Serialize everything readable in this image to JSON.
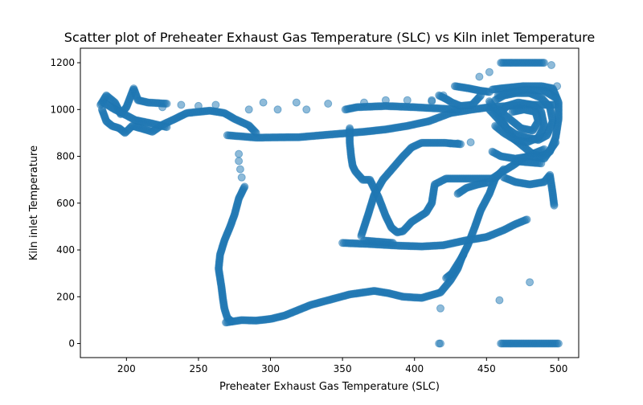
{
  "chart_data": {
    "type": "scatter",
    "title": "Scatter plot of Preheater Exhaust Gas Temperature (SLC) vs Kiln inlet Temperature",
    "xlabel": "Preheater Exhaust Gas Temperature (SLC)",
    "ylabel": "Kiln inlet Temperature",
    "xlim": [
      168,
      514
    ],
    "ylim": [
      -60,
      1262
    ],
    "x_ticks": [
      200,
      250,
      300,
      350,
      400,
      450,
      500
    ],
    "y_ticks": [
      0,
      200,
      400,
      600,
      800,
      1000,
      1200
    ],
    "marker_color": "#1f77b4",
    "marker_alpha": 0.5,
    "grid": false,
    "series": [
      {
        "name": "",
        "paths": [
          [
            [
              182,
              1020
            ],
            [
              186,
              1060
            ],
            [
              192,
              1030
            ],
            [
              196,
              980
            ],
            [
              200,
              1010
            ],
            [
              205,
              1090
            ],
            [
              208,
              1040
            ],
            [
              215,
              1030
            ],
            [
              228,
              1025
            ]
          ],
          [
            [
              183,
              1000
            ],
            [
              186,
              950
            ],
            [
              190,
              930
            ],
            [
              195,
              920
            ],
            [
              199,
              900
            ],
            [
              204,
              930
            ],
            [
              210,
              920
            ],
            [
              218,
              905
            ],
            [
              225,
              935
            ],
            [
              232,
              955
            ],
            [
              242,
              985
            ],
            [
              258,
              995
            ],
            [
              268,
              985
            ],
            [
              275,
              960
            ],
            [
              285,
              932
            ],
            [
              290,
              900
            ]
          ],
          [
            [
              184,
              1030
            ],
            [
              192,
              1000
            ],
            [
              200,
              975
            ],
            [
              206,
              955
            ],
            [
              210,
              950
            ],
            [
              218,
              940
            ],
            [
              228,
              925
            ]
          ],
          [
            [
              270,
              890
            ],
            [
              290,
              880
            ],
            [
              320,
              882
            ],
            [
              345,
              895
            ],
            [
              365,
              905
            ],
            [
              380,
              915
            ],
            [
              395,
              930
            ],
            [
              410,
              950
            ],
            [
              425,
              985
            ],
            [
              440,
              1000
            ],
            [
              452,
              1010
            ],
            [
              465,
              1015
            ],
            [
              480,
              1020
            ],
            [
              498,
              1020
            ]
          ],
          [
            [
              352,
              1000
            ],
            [
              360,
              1010
            ],
            [
              380,
              1015
            ],
            [
              400,
              1010
            ],
            [
              415,
              1005
            ],
            [
              430,
              1000
            ]
          ],
          [
            [
              282,
              670
            ],
            [
              278,
              620
            ],
            [
              275,
              550
            ],
            [
              272,
              500
            ],
            [
              268,
              440
            ],
            [
              265,
              380
            ],
            [
              264,
              320
            ],
            [
              265,
              280
            ],
            [
              266,
              240
            ],
            [
              267,
              190
            ],
            [
              268,
              150
            ],
            [
              270,
              110
            ],
            [
              273,
              95
            ]
          ],
          [
            [
              269,
              90
            ],
            [
              280,
              100
            ],
            [
              290,
              98
            ],
            [
              300,
              105
            ],
            [
              310,
              120
            ],
            [
              318,
              140
            ],
            [
              328,
              165
            ],
            [
              340,
              185
            ],
            [
              355,
              210
            ],
            [
              372,
              225
            ],
            [
              382,
              215
            ],
            [
              392,
              200
            ],
            [
              405,
              195
            ],
            [
              418,
              218
            ],
            [
              425,
              270
            ],
            [
              430,
              320
            ],
            [
              433,
              370
            ],
            [
              437,
              420
            ],
            [
              442,
              500
            ],
            [
              446,
              570
            ],
            [
              452,
              640
            ],
            [
              456,
              705
            ],
            [
              462,
              745
            ]
          ],
          [
            [
              350,
              430
            ],
            [
              370,
              425
            ],
            [
              390,
              418
            ],
            [
              405,
              415
            ],
            [
              420,
              420
            ],
            [
              435,
              440
            ],
            [
              450,
              455
            ],
            [
              462,
              485
            ],
            [
              470,
              510
            ],
            [
              478,
              530
            ]
          ],
          [
            [
              365,
              440
            ],
            [
              375,
              435
            ],
            [
              385,
              430
            ]
          ],
          [
            [
              363,
              460
            ],
            [
              368,
              555
            ],
            [
              372,
              635
            ],
            [
              378,
              700
            ],
            [
              385,
              750
            ],
            [
              392,
              800
            ],
            [
              398,
              838
            ],
            [
              405,
              858
            ],
            [
              420,
              858
            ],
            [
              432,
              852
            ]
          ],
          [
            [
              355,
              920
            ],
            [
              355,
              860
            ],
            [
              356,
              800
            ],
            [
              357,
              760
            ],
            [
              359,
              735
            ],
            [
              364,
              700
            ],
            [
              369,
              700
            ],
            [
              375,
              625
            ],
            [
              380,
              545
            ],
            [
              384,
              495
            ],
            [
              388,
              475
            ],
            [
              392,
              480
            ],
            [
              398,
              520
            ],
            [
              405,
              548
            ],
            [
              408,
              560
            ],
            [
              412,
              600
            ],
            [
              414,
              680
            ],
            [
              422,
              705
            ],
            [
              430,
              705
            ],
            [
              446,
              705
            ],
            [
              454,
              705
            ],
            [
              460,
              730
            ],
            [
              468,
              760
            ],
            [
              475,
              790
            ],
            [
              482,
              810
            ],
            [
              490,
              830
            ]
          ],
          [
            [
              462,
              710
            ],
            [
              470,
              690
            ],
            [
              480,
              680
            ],
            [
              490,
              690
            ],
            [
              494,
              720
            ],
            [
              496,
              640
            ],
            [
              497,
              590
            ]
          ],
          [
            [
              417,
              1060
            ],
            [
              422,
              1045
            ],
            [
              426,
              1030
            ],
            [
              432,
              1015
            ],
            [
              440,
              1020
            ],
            [
              446,
              1060
            ]
          ],
          [
            [
              428,
              1100
            ],
            [
              438,
              1090
            ],
            [
              446,
              1080
            ],
            [
              452,
              1075
            ]
          ],
          [
            [
              452,
              1035
            ],
            [
              458,
              980
            ],
            [
              462,
              940
            ],
            [
              466,
              900
            ],
            [
              470,
              870
            ],
            [
              476,
              840
            ],
            [
              482,
              810
            ],
            [
              488,
              800
            ],
            [
              494,
              820
            ],
            [
              498,
              880
            ],
            [
              500,
              960
            ],
            [
              500,
              1030
            ],
            [
              496,
              1090
            ],
            [
              488,
              1100
            ],
            [
              476,
              1100
            ],
            [
              468,
              1095
            ],
            [
              460,
              1090
            ],
            [
              454,
              1085
            ]
          ],
          [
            [
              452,
              1000
            ],
            [
              458,
              960
            ],
            [
              464,
              920
            ],
            [
              470,
              895
            ],
            [
              478,
              880
            ],
            [
              486,
              870
            ],
            [
              492,
              890
            ],
            [
              496,
              950
            ],
            [
              494,
              1010
            ],
            [
              488,
              1050
            ],
            [
              480,
              1070
            ],
            [
              470,
              1070
            ],
            [
              462,
              1060
            ],
            [
              456,
              1040
            ]
          ],
          [
            [
              456,
              930
            ],
            [
              462,
              900
            ],
            [
              470,
              870
            ],
            [
              478,
              860
            ],
            [
              486,
              880
            ],
            [
              490,
              930
            ],
            [
              488,
              990
            ],
            [
              482,
              1020
            ],
            [
              472,
              1030
            ],
            [
              464,
              1015
            ],
            [
              460,
              985
            ]
          ],
          [
            [
              458,
              1000
            ],
            [
              466,
              960
            ],
            [
              474,
              920
            ],
            [
              482,
              910
            ],
            [
              486,
              950
            ],
            [
              484,
              990
            ],
            [
              476,
              1000
            ],
            [
              468,
              990
            ]
          ],
          [
            [
              454,
              820
            ],
            [
              460,
              800
            ],
            [
              470,
              790
            ],
            [
              480,
              800
            ],
            [
              490,
              790
            ],
            [
              498,
              860
            ]
          ],
          [
            [
              458,
              1060
            ],
            [
              468,
              1075
            ],
            [
              478,
              1085
            ],
            [
              490,
              1080
            ],
            [
              498,
              1050
            ]
          ],
          [
            [
              460,
              1200
            ],
            [
              470,
              1200
            ],
            [
              480,
              1200
            ],
            [
              490,
              1200
            ]
          ],
          [
            [
              460,
              0
            ],
            [
              470,
              0
            ],
            [
              480,
              0
            ],
            [
              490,
              0
            ],
            [
              500,
              0
            ]
          ],
          [
            [
              417,
              0
            ],
            [
              418,
              0
            ]
          ],
          [
            [
              422,
              280
            ],
            [
              426,
              300
            ],
            [
              430,
              340
            ],
            [
              434,
              380
            ]
          ],
          [
            [
              430,
              640
            ],
            [
              436,
              665
            ],
            [
              444,
              680
            ],
            [
              452,
              690
            ]
          ],
          [
            [
              470,
              780
            ],
            [
              478,
              775
            ],
            [
              488,
              770
            ]
          ]
        ],
        "points": [
          [
            225,
            1010
          ],
          [
            238,
            1020
          ],
          [
            250,
            1015
          ],
          [
            262,
            1020
          ],
          [
            285,
            1000
          ],
          [
            295,
            1030
          ],
          [
            305,
            1000
          ],
          [
            318,
            1030
          ],
          [
            325,
            1000
          ],
          [
            340,
            1025
          ],
          [
            365,
            1030
          ],
          [
            380,
            1040
          ],
          [
            395,
            1040
          ],
          [
            412,
            1035
          ],
          [
            420,
            1060
          ],
          [
            278,
            810
          ],
          [
            278,
            780
          ],
          [
            279,
            745
          ],
          [
            280,
            710
          ],
          [
            418,
            150
          ],
          [
            459,
            185
          ],
          [
            480,
            262
          ],
          [
            412,
            1040
          ],
          [
            445,
            1140
          ],
          [
            452,
            1160
          ],
          [
            499,
            1100
          ],
          [
            495,
            1190
          ],
          [
            439,
            860
          ],
          [
            430,
            855
          ],
          [
            425,
            855
          ]
        ]
      }
    ]
  }
}
